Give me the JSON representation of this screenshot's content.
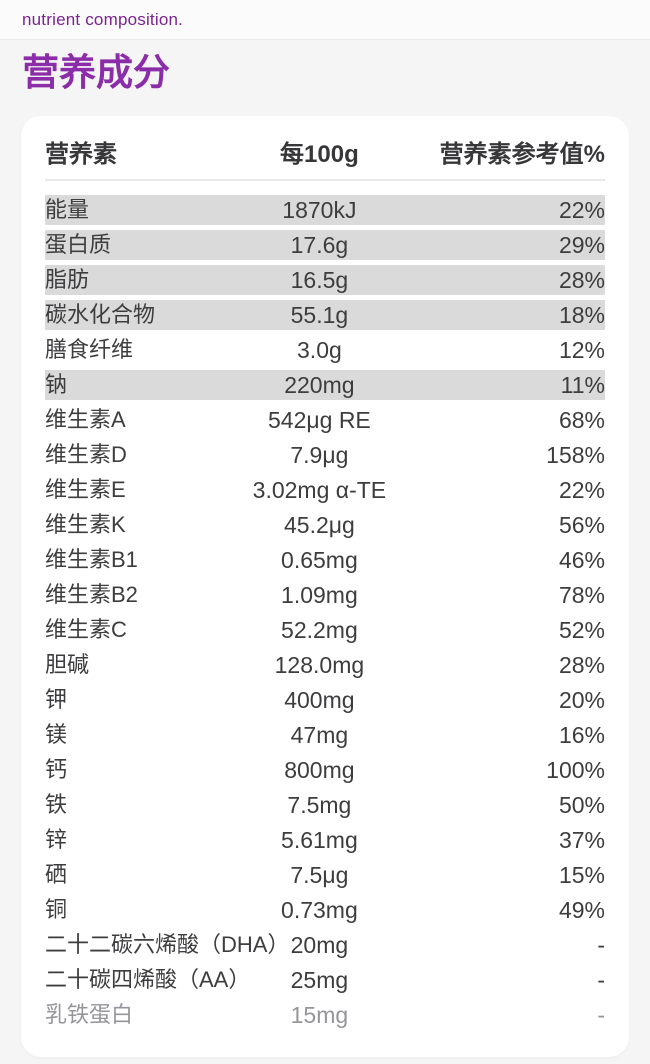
{
  "page": {
    "eyebrow": "nutrient composition.",
    "title": "营养成分"
  },
  "colors": {
    "accent_purple_title": "#8b2da8",
    "accent_purple_eyebrow": "#7c2392",
    "stripe_gray": "#dadada",
    "text_dark": "#3d3d3f",
    "text_muted": "#95959a",
    "page_background": "#f5f5f6",
    "card_background": "#ffffff"
  },
  "table": {
    "headers": {
      "nutrient": "营养素",
      "per_100g": "每100g",
      "nrv_percent": "营养素参考值%"
    },
    "rows": [
      {
        "name": "能量",
        "value": "1870kJ",
        "nrv": "22%",
        "striped": true,
        "muted": false
      },
      {
        "name": "蛋白质",
        "value": "17.6g",
        "nrv": "29%",
        "striped": true,
        "muted": false
      },
      {
        "name": "脂肪",
        "value": "16.5g",
        "nrv": "28%",
        "striped": true,
        "muted": false
      },
      {
        "name": "碳水化合物",
        "value": "55.1g",
        "nrv": "18%",
        "striped": true,
        "muted": false
      },
      {
        "name": "膳食纤维",
        "value": "3.0g",
        "nrv": "12%",
        "striped": false,
        "muted": false
      },
      {
        "name": "钠",
        "value": "220mg",
        "nrv": "11%",
        "striped": true,
        "muted": false
      },
      {
        "name": "维生素A",
        "value": "542μg RE",
        "nrv": "68%",
        "striped": false,
        "muted": false
      },
      {
        "name": "维生素D",
        "value": "7.9μg",
        "nrv": "158%",
        "striped": false,
        "muted": false
      },
      {
        "name": "维生素E",
        "value": "3.02mg α-TE",
        "nrv": "22%",
        "striped": false,
        "muted": false
      },
      {
        "name": "维生素K",
        "value": "45.2μg",
        "nrv": "56%",
        "striped": false,
        "muted": false
      },
      {
        "name": "维生素B1",
        "value": "0.65mg",
        "nrv": "46%",
        "striped": false,
        "muted": false
      },
      {
        "name": "维生素B2",
        "value": "1.09mg",
        "nrv": "78%",
        "striped": false,
        "muted": false
      },
      {
        "name": "维生素C",
        "value": "52.2mg",
        "nrv": "52%",
        "striped": false,
        "muted": false
      },
      {
        "name": "胆碱",
        "value": "128.0mg",
        "nrv": "28%",
        "striped": false,
        "muted": false
      },
      {
        "name": "钾",
        "value": "400mg",
        "nrv": "20%",
        "striped": false,
        "muted": false
      },
      {
        "name": "镁",
        "value": "47mg",
        "nrv": "16%",
        "striped": false,
        "muted": false
      },
      {
        "name": "钙",
        "value": "800mg",
        "nrv": "100%",
        "striped": false,
        "muted": false
      },
      {
        "name": "铁",
        "value": "7.5mg",
        "nrv": "50%",
        "striped": false,
        "muted": false
      },
      {
        "name": "锌",
        "value": "5.61mg",
        "nrv": "37%",
        "striped": false,
        "muted": false
      },
      {
        "name": "硒",
        "value": "7.5μg",
        "nrv": "15%",
        "striped": false,
        "muted": false
      },
      {
        "name": "铜",
        "value": "0.73mg",
        "nrv": "49%",
        "striped": false,
        "muted": false
      },
      {
        "name": "二十二碳六烯酸（DHA）",
        "value": "20mg",
        "nrv": "-",
        "striped": false,
        "muted": false
      },
      {
        "name": "二十碳四烯酸（AA）",
        "value": "25mg",
        "nrv": "-",
        "striped": false,
        "muted": false
      },
      {
        "name": "乳铁蛋白",
        "value": "15mg",
        "nrv": "-",
        "striped": false,
        "muted": true
      }
    ]
  }
}
